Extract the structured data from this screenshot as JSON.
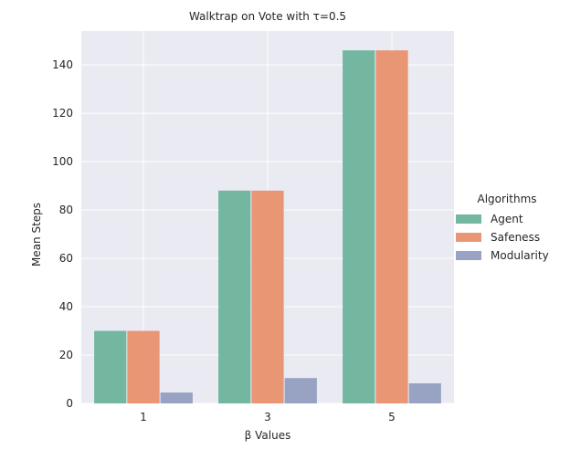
{
  "chart_data": {
    "type": "bar",
    "title": "Walktrap on Vote with τ=0.5",
    "xlabel": "β Values",
    "ylabel": "Mean Steps",
    "categories": [
      "1",
      "3",
      "5"
    ],
    "ylim": [
      0,
      154
    ],
    "yticks": [
      0,
      20,
      40,
      60,
      80,
      100,
      120,
      140
    ],
    "grid": true,
    "legend": {
      "title": "Algorithms",
      "placement": "right"
    },
    "series": [
      {
        "name": "Agent",
        "color": "#73b7a0",
        "values": [
          30,
          88,
          146
        ]
      },
      {
        "name": "Safeness",
        "color": "#e99675",
        "values": [
          30,
          88,
          146
        ]
      },
      {
        "name": "Modularity",
        "color": "#98a3c4",
        "values": [
          4.5,
          10.5,
          8.3
        ]
      }
    ],
    "colors": {
      "plot_background": "#eaeaf2",
      "grid": "#ffffff"
    }
  }
}
